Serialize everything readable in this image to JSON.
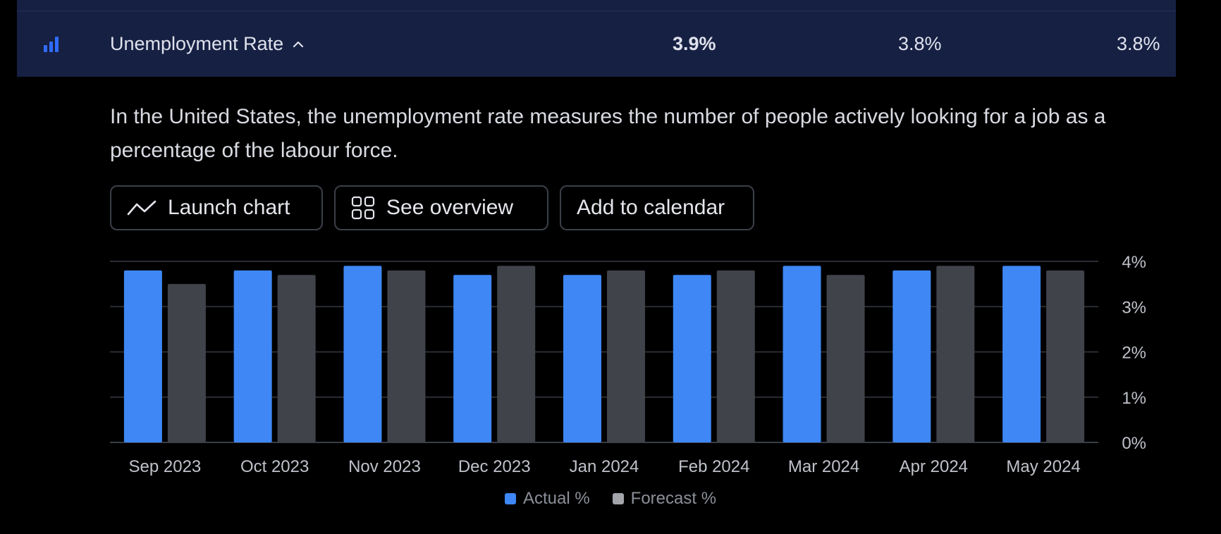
{
  "row": {
    "title": "Unemployment Rate",
    "actual": "3.9%",
    "forecast": "3.8%",
    "previous": "3.8%",
    "icon": "bar-chart-icon",
    "expand_icon": "chevron-up-icon"
  },
  "description": "In the United States, the unemployment rate measures the number of people actively looking for a job as a percentage of the labour force.",
  "buttons": {
    "launch_chart": "Launch chart",
    "launch_chart_icon": "line-chart-icon",
    "see_overview": "See overview",
    "see_overview_icon": "grid-icon",
    "add_to_calendar": "Add to calendar"
  },
  "colors": {
    "actual": "#3e87f5",
    "forecast": "#41434b",
    "row_bg": "#162043",
    "accent_icon": "#2f6bff"
  },
  "legend": {
    "actual": "Actual %",
    "forecast": "Forecast %"
  },
  "chart_data": {
    "type": "bar",
    "categories": [
      "Sep 2023",
      "Oct 2023",
      "Nov 2023",
      "Dec 2023",
      "Jan 2024",
      "Feb 2024",
      "Mar 2024",
      "Apr 2024",
      "May 2024"
    ],
    "series": [
      {
        "name": "Actual %",
        "values": [
          3.8,
          3.8,
          3.9,
          3.7,
          3.7,
          3.7,
          3.9,
          3.8,
          3.9
        ]
      },
      {
        "name": "Forecast %",
        "values": [
          3.5,
          3.7,
          3.8,
          3.9,
          3.8,
          3.8,
          3.7,
          3.9,
          3.8
        ]
      }
    ],
    "yticks": [
      "0%",
      "1%",
      "2%",
      "3%",
      "4%"
    ],
    "ylim": [
      0,
      4
    ],
    "grid": true,
    "legend_position": "bottom-center"
  }
}
